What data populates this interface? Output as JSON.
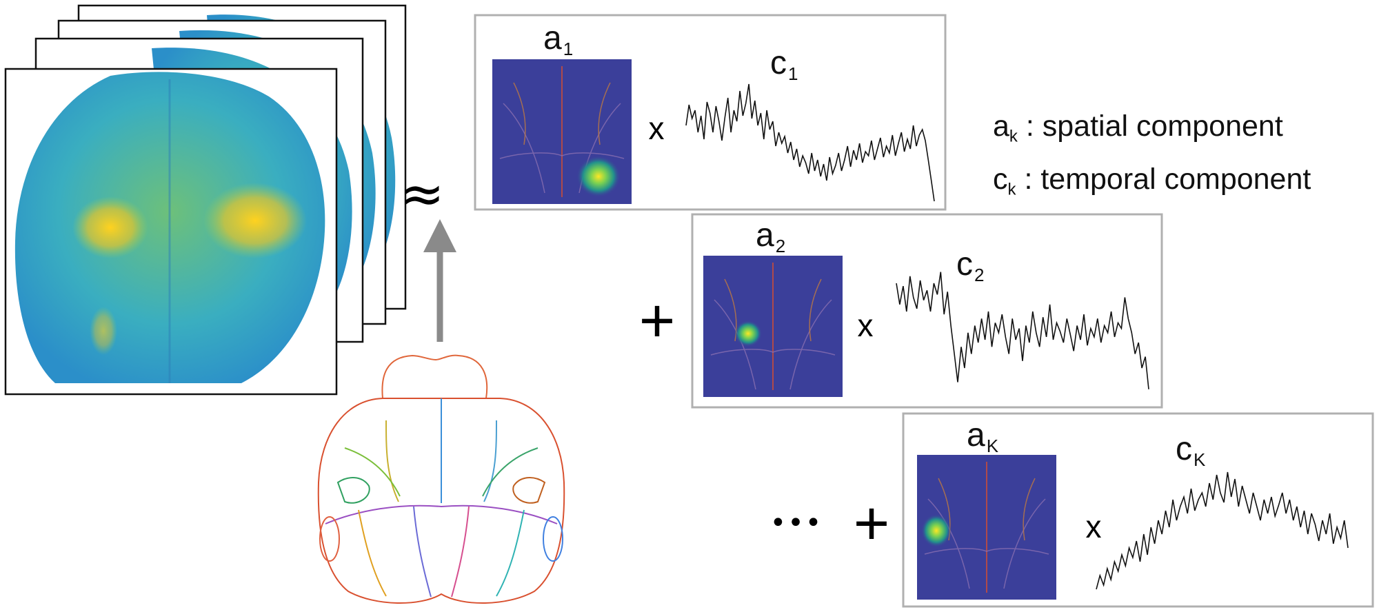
{
  "approx_symbol": "≈",
  "operators": {
    "times": "x",
    "plus": "+",
    "ellipsis": "•••"
  },
  "components": [
    {
      "a_base": "a",
      "a_sub": "1",
      "c_base": "c",
      "c_sub": "1",
      "trace": [
        0.55,
        0.7,
        0.6,
        0.66,
        0.5,
        0.62,
        0.45,
        0.72,
        0.64,
        0.5,
        0.69,
        0.58,
        0.44,
        0.61,
        0.75,
        0.5,
        0.66,
        0.58,
        0.8,
        0.62,
        0.71,
        0.85,
        0.6,
        0.73,
        0.55,
        0.64,
        0.45,
        0.66,
        0.52,
        0.58,
        0.4,
        0.5,
        0.42,
        0.47,
        0.35,
        0.43,
        0.3,
        0.38,
        0.25,
        0.33,
        0.28,
        0.2,
        0.35,
        0.22,
        0.3,
        0.18,
        0.27,
        0.15,
        0.32,
        0.2,
        0.26,
        0.35,
        0.22,
        0.3,
        0.4,
        0.25,
        0.37,
        0.3,
        0.42,
        0.28,
        0.36,
        0.33,
        0.44,
        0.3,
        0.38,
        0.46,
        0.32,
        0.4,
        0.35,
        0.48,
        0.33,
        0.42,
        0.5,
        0.36,
        0.45,
        0.38,
        0.55,
        0.4,
        0.48,
        0.52,
        0.44,
        0.3,
        0.15,
        0.0
      ]
    },
    {
      "a_base": "a",
      "a_sub": "2",
      "c_base": "c",
      "c_sub": "2",
      "trace": [
        0.8,
        0.65,
        0.78,
        0.6,
        0.85,
        0.7,
        0.62,
        0.82,
        0.68,
        0.75,
        0.6,
        0.8,
        0.72,
        0.88,
        0.58,
        0.74,
        0.5,
        0.3,
        0.1,
        0.35,
        0.2,
        0.45,
        0.3,
        0.5,
        0.38,
        0.55,
        0.4,
        0.6,
        0.35,
        0.52,
        0.45,
        0.58,
        0.42,
        0.3,
        0.55,
        0.4,
        0.48,
        0.25,
        0.5,
        0.38,
        0.6,
        0.45,
        0.35,
        0.56,
        0.42,
        0.65,
        0.4,
        0.52,
        0.46,
        0.38,
        0.55,
        0.44,
        0.32,
        0.5,
        0.4,
        0.58,
        0.36,
        0.48,
        0.42,
        0.55,
        0.38,
        0.5,
        0.45,
        0.6,
        0.42,
        0.52,
        0.48,
        0.7,
        0.55,
        0.45,
        0.3,
        0.38,
        0.2,
        0.28,
        0.05
      ]
    },
    {
      "a_base": "a",
      "a_sub": "K",
      "c_base": "c",
      "c_sub": "K",
      "trace": [
        0.05,
        0.15,
        0.08,
        0.2,
        0.12,
        0.25,
        0.18,
        0.3,
        0.22,
        0.35,
        0.28,
        0.4,
        0.25,
        0.45,
        0.3,
        0.5,
        0.38,
        0.55,
        0.45,
        0.62,
        0.5,
        0.7,
        0.55,
        0.65,
        0.72,
        0.6,
        0.78,
        0.62,
        0.7,
        0.75,
        0.65,
        0.82,
        0.7,
        0.88,
        0.75,
        0.68,
        0.9,
        0.72,
        0.85,
        0.65,
        0.8,
        0.7,
        0.6,
        0.75,
        0.65,
        0.55,
        0.7,
        0.6,
        0.72,
        0.58,
        0.66,
        0.75,
        0.6,
        0.7,
        0.55,
        0.65,
        0.5,
        0.62,
        0.45,
        0.6,
        0.52,
        0.4,
        0.55,
        0.45,
        0.6,
        0.38,
        0.5,
        0.42,
        0.55,
        0.35
      ]
    }
  ],
  "legend": [
    {
      "sym": "a",
      "sub": "k",
      "text": " : spatial component"
    },
    {
      "sym": "c",
      "sub": "k",
      "text": " : temporal component"
    }
  ]
}
